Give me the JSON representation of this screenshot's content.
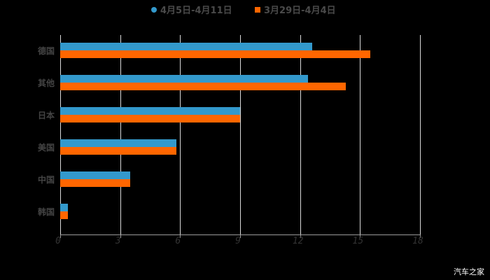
{
  "chart_data": {
    "type": "bar",
    "orientation": "horizontal",
    "title": "",
    "xlabel": "",
    "ylabel": "",
    "categories": [
      "德国",
      "其他",
      "日本",
      "美国",
      "中国",
      "韩国"
    ],
    "series": [
      {
        "name": "4月5日-4月11日",
        "color": "#3399cc",
        "values": [
          12.6,
          12.4,
          9.0,
          5.8,
          3.5,
          0.4
        ]
      },
      {
        "name": "3月29日-4月4日",
        "color": "#ff6600",
        "values": [
          15.5,
          14.3,
          9.0,
          5.8,
          3.5,
          0.4
        ]
      }
    ],
    "xlim": [
      0,
      18
    ],
    "xticks": [
      0,
      3,
      6,
      9,
      12,
      15,
      18
    ],
    "grid": true,
    "legend_position": "top"
  },
  "legend": [
    {
      "label": "4月5日-4月11日",
      "color": "#3399cc",
      "shape": "circle"
    },
    {
      "label": "3月29日-4月4日",
      "color": "#ff6600",
      "shape": "square"
    }
  ],
  "axis": {
    "ticks": [
      "0",
      "3",
      "6",
      "9",
      "12",
      "15",
      "18"
    ]
  },
  "categories": [
    "德国",
    "其他",
    "日本",
    "美国",
    "中国",
    "韩国"
  ],
  "watermark": "汽车之家"
}
